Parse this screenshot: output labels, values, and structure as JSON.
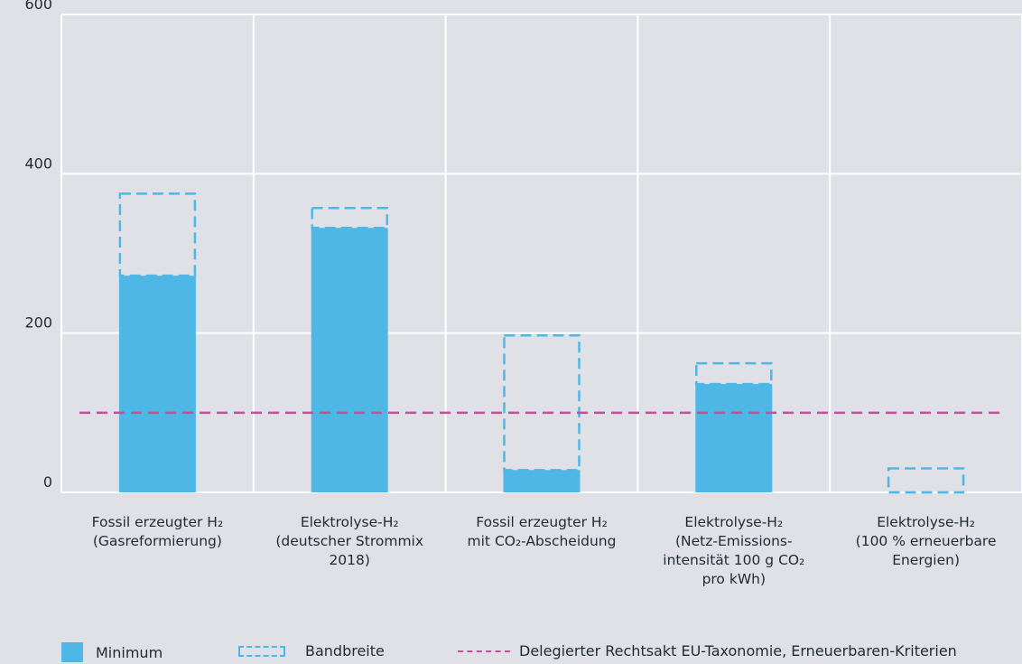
{
  "chart_data": {
    "type": "bar",
    "ylim": [
      0,
      600
    ],
    "yticks": [
      "0",
      "200",
      "400",
      "600"
    ],
    "grid": true,
    "categories": [
      [
        "Fossil erzeugter H₂",
        "(Gasreformierung)"
      ],
      [
        "Elektrolyse-H₂",
        "(deutscher Strommix",
        "2018)"
      ],
      [
        "Fossil erzeugter H₂",
        "mit CO₂-Abscheidung"
      ],
      [
        "Elektrolyse-H₂",
        "(Netz-Emissions-",
        "intensität 100 g CO₂",
        "pro kWh)"
      ],
      [
        "Elektrolyse-H₂",
        "(100 % erneuerbare",
        "Energien)"
      ]
    ],
    "series": [
      {
        "name": "Minimum",
        "type": "bar",
        "values": [
          272,
          332,
          28,
          136,
          0
        ]
      },
      {
        "name": "Bandbreite",
        "type": "range",
        "low": [
          272,
          332,
          28,
          136,
          0
        ],
        "high": [
          375,
          357,
          197,
          162,
          30
        ]
      }
    ],
    "reference_line": {
      "name": "Delegierter Rechtsakt EU-Taxonomie, Erneuerbaren-Kriterien",
      "value": 100
    },
    "colors": {
      "minimum": "#4fb7e6",
      "band": "#4fb7e6",
      "reference": "#c4509a",
      "grid": "#ffffff"
    },
    "legend_position": "bottom"
  },
  "legend": {
    "minimum": "Minimum",
    "band": "Bandbreite",
    "reference": "Delegierter Rechtsakt EU-Taxonomie, Erneuerbaren-Kriterien"
  }
}
